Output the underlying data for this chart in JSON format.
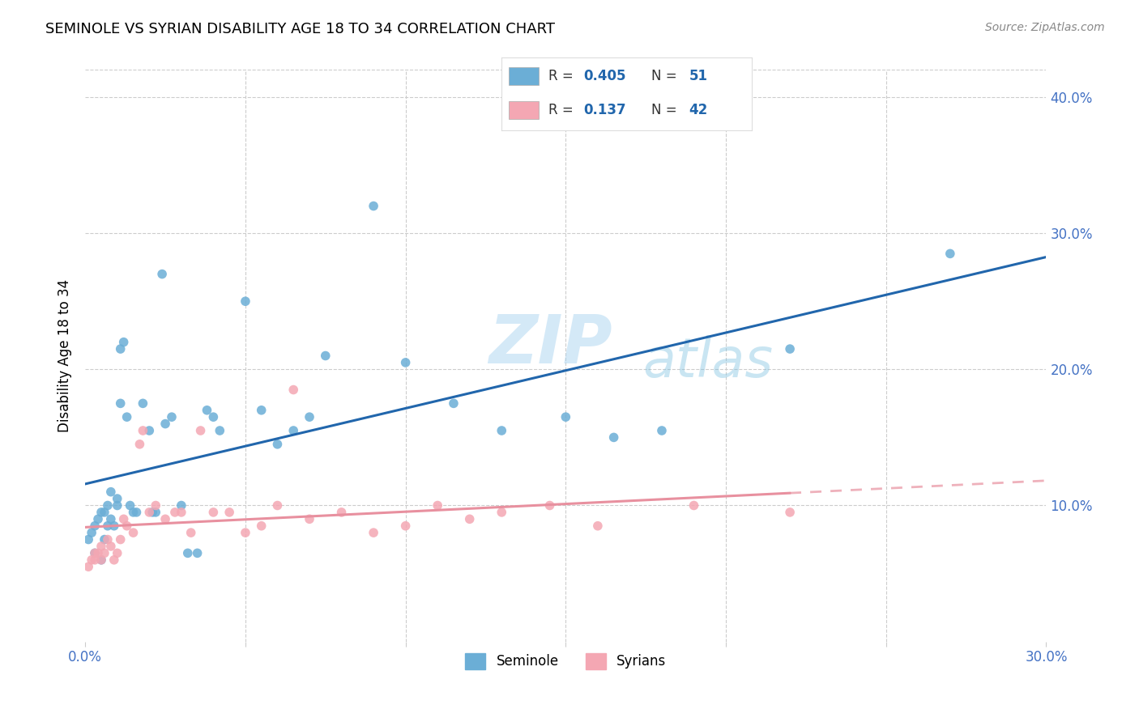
{
  "title": "SEMINOLE VS SYRIAN DISABILITY AGE 18 TO 34 CORRELATION CHART",
  "source": "Source: ZipAtlas.com",
  "ylabel": "Disability Age 18 to 34",
  "xlim": [
    0.0,
    0.3
  ],
  "ylim": [
    0.0,
    0.42
  ],
  "seminole_color": "#6baed6",
  "syrian_color": "#f4a7b3",
  "seminole_line_color": "#2166ac",
  "syrian_line_color": "#e8909f",
  "R_seminole": "0.405",
  "N_seminole": "51",
  "R_syrian": "0.137",
  "N_syrian": "42",
  "watermark_zip": "ZIP",
  "watermark_atlas": "atlas",
  "seminole_x": [
    0.001,
    0.002,
    0.003,
    0.003,
    0.004,
    0.005,
    0.005,
    0.006,
    0.006,
    0.007,
    0.007,
    0.008,
    0.008,
    0.009,
    0.01,
    0.01,
    0.011,
    0.011,
    0.012,
    0.013,
    0.014,
    0.015,
    0.016,
    0.018,
    0.02,
    0.021,
    0.022,
    0.024,
    0.025,
    0.027,
    0.03,
    0.032,
    0.035,
    0.038,
    0.04,
    0.042,
    0.05,
    0.055,
    0.06,
    0.065,
    0.07,
    0.075,
    0.09,
    0.1,
    0.115,
    0.13,
    0.15,
    0.165,
    0.18,
    0.22,
    0.27
  ],
  "seminole_y": [
    0.075,
    0.08,
    0.065,
    0.085,
    0.09,
    0.06,
    0.095,
    0.075,
    0.095,
    0.1,
    0.085,
    0.11,
    0.09,
    0.085,
    0.1,
    0.105,
    0.175,
    0.215,
    0.22,
    0.165,
    0.1,
    0.095,
    0.095,
    0.175,
    0.155,
    0.095,
    0.095,
    0.27,
    0.16,
    0.165,
    0.1,
    0.065,
    0.065,
    0.17,
    0.165,
    0.155,
    0.25,
    0.17,
    0.145,
    0.155,
    0.165,
    0.21,
    0.32,
    0.205,
    0.175,
    0.155,
    0.165,
    0.15,
    0.155,
    0.215,
    0.285
  ],
  "syrian_x": [
    0.001,
    0.002,
    0.003,
    0.003,
    0.004,
    0.005,
    0.005,
    0.006,
    0.007,
    0.008,
    0.009,
    0.01,
    0.011,
    0.012,
    0.013,
    0.015,
    0.017,
    0.018,
    0.02,
    0.022,
    0.025,
    0.028,
    0.03,
    0.033,
    0.036,
    0.04,
    0.045,
    0.05,
    0.055,
    0.06,
    0.065,
    0.07,
    0.08,
    0.09,
    0.1,
    0.11,
    0.12,
    0.13,
    0.145,
    0.16,
    0.19,
    0.22
  ],
  "syrian_y": [
    0.055,
    0.06,
    0.06,
    0.065,
    0.065,
    0.07,
    0.06,
    0.065,
    0.075,
    0.07,
    0.06,
    0.065,
    0.075,
    0.09,
    0.085,
    0.08,
    0.145,
    0.155,
    0.095,
    0.1,
    0.09,
    0.095,
    0.095,
    0.08,
    0.155,
    0.095,
    0.095,
    0.08,
    0.085,
    0.1,
    0.185,
    0.09,
    0.095,
    0.08,
    0.085,
    0.1,
    0.09,
    0.095,
    0.1,
    0.085,
    0.1,
    0.095
  ]
}
